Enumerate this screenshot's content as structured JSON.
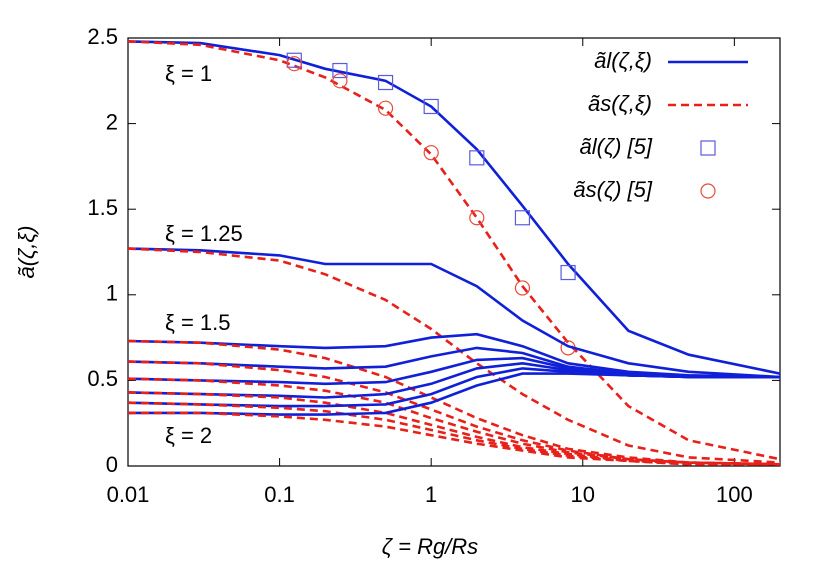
{
  "chart_data": {
    "type": "line",
    "xlabel": "ζ = Rg/Rs",
    "ylabel": "ã(ζ,ξ)",
    "xscale": "log",
    "xlim": [
      0.01,
      200
    ],
    "xticks": [
      0.01,
      0.1,
      1,
      10,
      100
    ],
    "ylim": [
      0,
      2.5
    ],
    "yticks": [
      0,
      0.5,
      1,
      1.5,
      2,
      2.5
    ],
    "annotations": [
      "ξ = 1",
      "ξ = 1.25",
      "ξ = 1.5",
      "ξ = 2"
    ],
    "x": [
      0.01,
      0.03,
      0.1,
      0.2,
      0.5,
      1,
      2,
      4,
      8,
      20,
      50,
      200
    ],
    "series": [
      {
        "name": "ãl(ζ,ξ)",
        "color": "#1020d8",
        "style": "solid",
        "values": [
          2.48,
          2.47,
          2.4,
          2.32,
          2.25,
          2.1,
          1.85,
          1.52,
          1.18,
          0.79,
          0.65,
          0.54
        ]
      },
      {
        "name": "ãs(ζ,ξ)",
        "color": "#e8201a",
        "style": "dashed",
        "values": [
          2.48,
          2.46,
          2.37,
          2.27,
          2.08,
          1.82,
          1.45,
          1.05,
          0.72,
          0.35,
          0.15,
          0.04
        ]
      },
      {
        "name": "ãl(ζ) [5]",
        "color": "#5a5ae0",
        "style": "square",
        "x": [
          0.125,
          0.25,
          0.5,
          1,
          2,
          4,
          8
        ],
        "values": [
          2.37,
          2.31,
          2.24,
          2.1,
          1.8,
          1.45,
          1.13
        ]
      },
      {
        "name": "ãs(ζ) [5]",
        "color": "#e84a3a",
        "style": "circle",
        "x": [
          0.125,
          0.25,
          0.5,
          1,
          2,
          4,
          8
        ],
        "values": [
          2.35,
          2.25,
          2.09,
          1.83,
          1.45,
          1.04,
          0.69
        ]
      },
      {
        "color": "#1020d8",
        "style": "solid",
        "values": [
          1.27,
          1.26,
          1.23,
          1.18,
          1.18,
          1.18,
          1.05,
          0.85,
          0.7,
          0.6,
          0.55,
          0.52
        ]
      },
      {
        "color": "#e8201a",
        "style": "dashed",
        "values": [
          1.27,
          1.25,
          1.2,
          1.12,
          0.97,
          0.8,
          0.6,
          0.42,
          0.27,
          0.12,
          0.05,
          0.02
        ]
      },
      {
        "color": "#1020d8",
        "style": "solid",
        "values": [
          0.73,
          0.72,
          0.7,
          0.69,
          0.7,
          0.75,
          0.77,
          0.7,
          0.6,
          0.55,
          0.53,
          0.52
        ]
      },
      {
        "color": "#e8201a",
        "style": "dashed",
        "values": [
          0.73,
          0.72,
          0.68,
          0.63,
          0.52,
          0.4,
          0.28,
          0.18,
          0.1,
          0.05,
          0.02,
          0.01
        ]
      },
      {
        "color": "#1020d8",
        "style": "solid",
        "values": [
          0.61,
          0.6,
          0.58,
          0.57,
          0.58,
          0.64,
          0.69,
          0.66,
          0.58,
          0.54,
          0.52,
          0.52
        ]
      },
      {
        "color": "#e8201a",
        "style": "dashed",
        "values": [
          0.61,
          0.6,
          0.56,
          0.52,
          0.43,
          0.33,
          0.23,
          0.15,
          0.09,
          0.04,
          0.02,
          0.01
        ]
      },
      {
        "color": "#1020d8",
        "style": "solid",
        "values": [
          0.51,
          0.5,
          0.49,
          0.48,
          0.49,
          0.55,
          0.62,
          0.63,
          0.57,
          0.53,
          0.52,
          0.52
        ]
      },
      {
        "color": "#e8201a",
        "style": "dashed",
        "values": [
          0.51,
          0.5,
          0.47,
          0.44,
          0.37,
          0.28,
          0.2,
          0.13,
          0.08,
          0.04,
          0.02,
          0.01
        ]
      },
      {
        "color": "#1020d8",
        "style": "solid",
        "values": [
          0.43,
          0.42,
          0.41,
          0.4,
          0.42,
          0.48,
          0.57,
          0.6,
          0.56,
          0.53,
          0.52,
          0.52
        ]
      },
      {
        "color": "#e8201a",
        "style": "dashed",
        "values": [
          0.43,
          0.42,
          0.4,
          0.37,
          0.31,
          0.24,
          0.17,
          0.11,
          0.07,
          0.03,
          0.02,
          0.01
        ]
      },
      {
        "color": "#1020d8",
        "style": "solid",
        "values": [
          0.37,
          0.36,
          0.35,
          0.35,
          0.36,
          0.42,
          0.52,
          0.57,
          0.55,
          0.53,
          0.52,
          0.52
        ]
      },
      {
        "color": "#e8201a",
        "style": "dashed",
        "values": [
          0.37,
          0.36,
          0.34,
          0.32,
          0.27,
          0.21,
          0.15,
          0.1,
          0.06,
          0.03,
          0.01,
          0.01
        ]
      },
      {
        "color": "#1020d8",
        "style": "solid",
        "values": [
          0.31,
          0.31,
          0.3,
          0.3,
          0.31,
          0.37,
          0.47,
          0.54,
          0.54,
          0.53,
          0.52,
          0.52
        ]
      },
      {
        "color": "#e8201a",
        "style": "dashed",
        "values": [
          0.31,
          0.31,
          0.29,
          0.27,
          0.23,
          0.18,
          0.13,
          0.09,
          0.05,
          0.03,
          0.01,
          0.01
        ]
      }
    ]
  }
}
